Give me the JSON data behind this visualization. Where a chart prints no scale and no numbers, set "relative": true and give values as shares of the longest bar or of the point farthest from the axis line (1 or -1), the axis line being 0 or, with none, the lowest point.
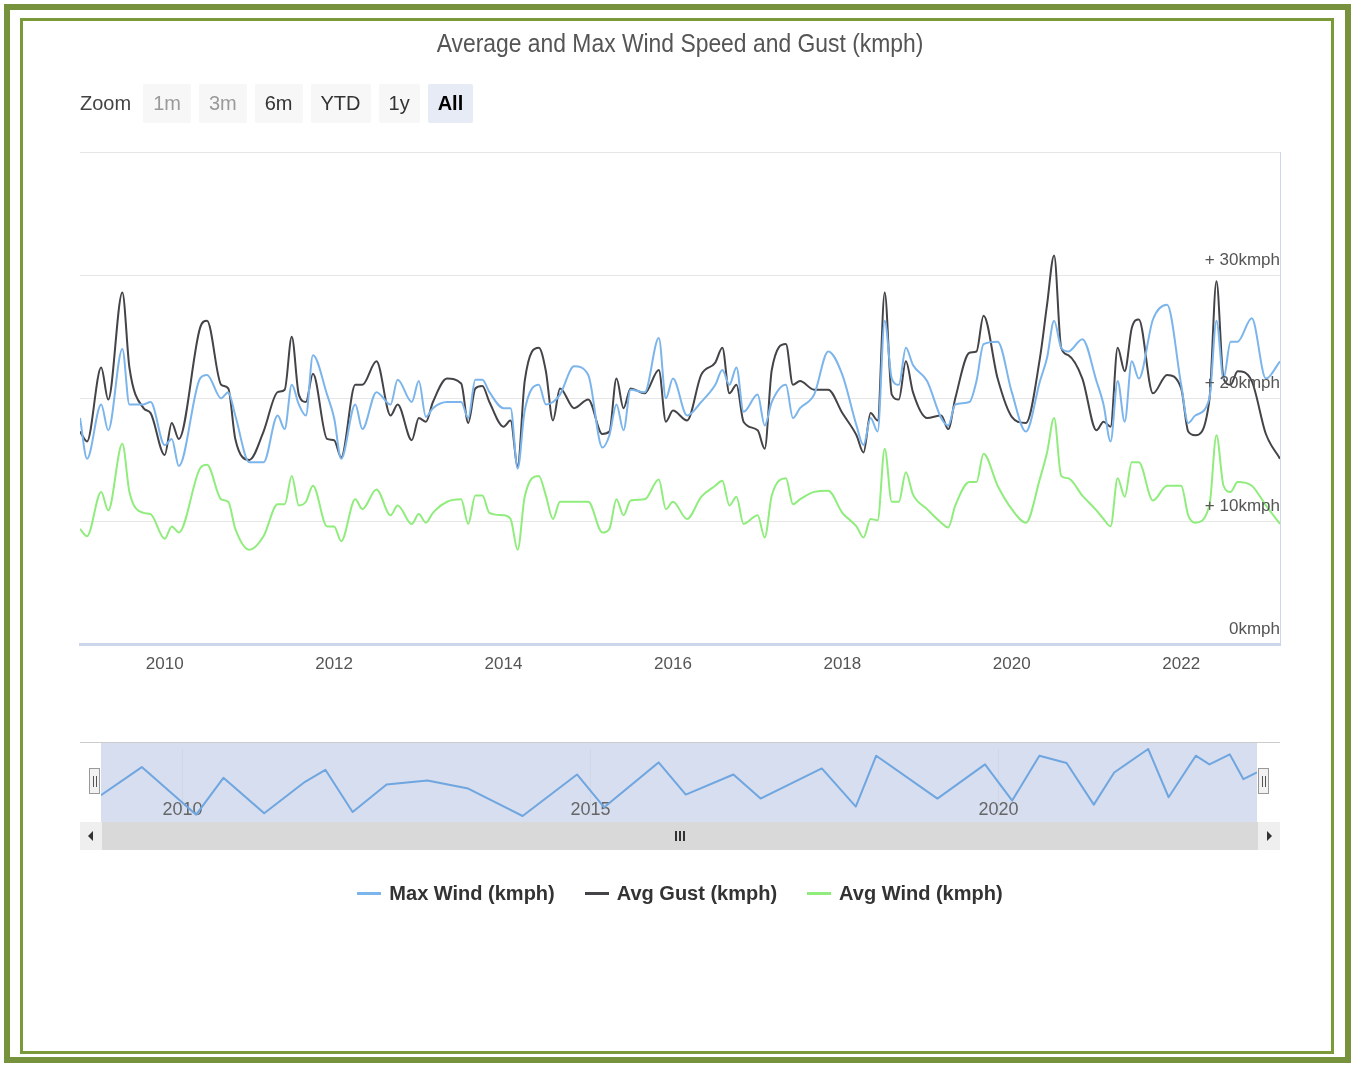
{
  "chart_data": [
    {
      "type": "line",
      "title": "Average and Max Wind Speed and Gust (kmph)",
      "annotations": [
        "Zoom",
        "1m",
        "3m",
        "6m",
        "YTD",
        "1y",
        "All"
      ],
      "x": [
        "2009-01",
        "2009-02",
        "2009-04",
        "2009-05",
        "2009-07",
        "2009-08",
        "2009-10",
        "2009-11",
        "2010-01",
        "2010-02",
        "2010-03",
        "2010-06",
        "2010-07",
        "2010-09",
        "2010-10",
        "2010-11",
        "2011-01",
        "2011-03",
        "2011-05",
        "2011-06",
        "2011-07",
        "2011-08",
        "2011-09",
        "2011-10",
        "2011-12",
        "2012-01",
        "2012-02",
        "2012-04",
        "2012-05",
        "2012-07",
        "2012-09",
        "2012-10",
        "2012-12",
        "2013-01",
        "2013-02",
        "2013-03",
        "2013-05",
        "2013-07",
        "2013-08",
        "2013-09",
        "2013-10",
        "2013-11",
        "2014-01",
        "2014-02",
        "2014-03",
        "2014-04",
        "2014-06",
        "2014-07",
        "2014-08",
        "2014-09",
        "2014-11",
        "2015-01",
        "2015-03",
        "2015-04",
        "2015-05",
        "2015-06",
        "2015-07",
        "2015-09",
        "2015-11",
        "2015-12",
        "2016-01",
        "2016-03",
        "2016-05",
        "2016-07",
        "2016-08",
        "2016-09",
        "2016-10",
        "2016-11",
        "2017-01",
        "2017-02",
        "2017-03",
        "2017-05",
        "2017-06",
        "2017-07",
        "2017-09",
        "2017-11",
        "2018-01",
        "2018-03",
        "2018-04",
        "2018-05",
        "2018-06",
        "2018-07",
        "2018-08",
        "2018-09",
        "2018-10",
        "2018-11",
        "2019-01",
        "2019-03",
        "2019-04",
        "2019-05",
        "2019-07",
        "2019-08",
        "2019-09",
        "2019-11",
        "2020-01",
        "2020-03",
        "2020-05",
        "2020-06",
        "2020-07",
        "2020-08",
        "2020-09",
        "2020-11",
        "2021-01",
        "2021-02",
        "2021-03",
        "2021-04",
        "2021-05",
        "2021-06",
        "2021-07",
        "2021-09",
        "2021-11",
        "2022-01",
        "2022-02",
        "2022-03",
        "2022-05",
        "2022-06",
        "2022-07",
        "2022-08",
        "2022-09",
        "2022-11",
        "2023-01",
        "2023-03"
      ],
      "xlim": [
        "2009-01",
        "2023-03"
      ],
      "xticks": [
        "2010",
        "2012",
        "2014",
        "2016",
        "2018",
        "2020",
        "2022"
      ],
      "ylim": [
        0,
        40
      ],
      "yticks": [
        {
          "value": 0,
          "label": "0kmph"
        },
        {
          "value": 10,
          "label": "+ 10kmph"
        },
        {
          "value": 20,
          "label": "+ 20kmph"
        },
        {
          "value": 30,
          "label": "+ 30kmph"
        },
        {
          "value": 40,
          "label": null
        }
      ],
      "grid": "y",
      "legend": "bottom",
      "marker": "none",
      "series": [
        {
          "name": "Max Wind (kmph)",
          "color": "#7cb5ec",
          "values": [
            18.4,
            15.1,
            19.5,
            17.4,
            24.0,
            19.5,
            19.5,
            19.7,
            16.2,
            16.7,
            14.5,
            21.6,
            21.9,
            20.0,
            20.5,
            18.6,
            14.8,
            14.8,
            18.6,
            17.5,
            21.1,
            19.5,
            18.6,
            23.5,
            20.3,
            18.4,
            15.1,
            19.5,
            17.5,
            20.5,
            19.5,
            21.5,
            19.7,
            21.4,
            18.5,
            19.2,
            19.7,
            19.7,
            18.4,
            21.5,
            21.5,
            20.5,
            19.2,
            19.2,
            14.3,
            19.0,
            21.1,
            19.5,
            19.7,
            20.3,
            22.6,
            21.9,
            16.0,
            17.0,
            19.5,
            17.4,
            20.7,
            20.5,
            24.9,
            20.0,
            21.6,
            18.6,
            19.7,
            21.1,
            22.3,
            21.1,
            22.5,
            18.9,
            20.3,
            17.8,
            19.7,
            21.1,
            18.4,
            19.2,
            20.3,
            23.8,
            21.9,
            17.8,
            16.2,
            18.4,
            17.3,
            26.3,
            21.6,
            21.1,
            24.1,
            22.7,
            21.4,
            18.4,
            17.8,
            19.5,
            19.7,
            21.4,
            24.4,
            24.6,
            20.5,
            17.3,
            21.4,
            23.3,
            26.3,
            24.1,
            23.8,
            24.8,
            21.4,
            19.5,
            16.5,
            21.4,
            18.1,
            23.0,
            21.6,
            26.4,
            27.6,
            21.1,
            18.0,
            18.6,
            20.0,
            26.3,
            21.6,
            24.6,
            24.6,
            26.5,
            21.6,
            23.0
          ]
        },
        {
          "name": "Avg Gust (kmph)",
          "color": "#434348",
          "values": [
            17.3,
            16.5,
            22.5,
            19.9,
            28.6,
            22.5,
            19.2,
            18.8,
            15.4,
            18.0,
            16.7,
            25.7,
            26.3,
            21.1,
            20.8,
            16.7,
            15.0,
            17.3,
            20.5,
            20.7,
            25.0,
            20.3,
            19.7,
            22.0,
            16.7,
            16.6,
            15.2,
            21.1,
            21.1,
            23.0,
            18.6,
            19.5,
            16.6,
            18.4,
            18.1,
            19.7,
            21.6,
            21.2,
            18.0,
            20.8,
            21.0,
            19.7,
            17.7,
            18.2,
            14.5,
            21.4,
            24.1,
            22.2,
            18.2,
            20.8,
            19.2,
            19.9,
            17.1,
            17.3,
            21.6,
            19.2,
            20.8,
            20.4,
            22.3,
            18.1,
            19.0,
            18.2,
            21.9,
            22.9,
            24.1,
            20.4,
            21.1,
            18.1,
            17.4,
            15.9,
            22.3,
            24.4,
            21.1,
            21.4,
            20.7,
            20.7,
            18.8,
            17.0,
            15.6,
            18.8,
            18.2,
            28.6,
            20.3,
            19.9,
            23.0,
            20.5,
            18.4,
            18.6,
            17.5,
            20.0,
            23.7,
            23.8,
            26.7,
            21.6,
            18.5,
            18.0,
            23.3,
            27.6,
            31.6,
            24.1,
            23.5,
            21.6,
            17.4,
            18.1,
            17.7,
            24.1,
            22.2,
            25.7,
            26.4,
            20.4,
            21.9,
            20.8,
            17.3,
            17.0,
            19.9,
            29.5,
            21.6,
            21.1,
            22.2,
            21.4,
            17.1,
            15.1
          ]
        },
        {
          "name": "Avg Wind (kmph)",
          "color": "#90ed7d",
          "values": [
            9.4,
            8.8,
            12.4,
            10.9,
            16.3,
            12.4,
            10.7,
            10.6,
            8.6,
            9.6,
            9.1,
            14.3,
            14.6,
            11.8,
            11.6,
            9.4,
            7.7,
            8.8,
            11.4,
            11.4,
            13.7,
            11.3,
            11.6,
            12.9,
            9.6,
            9.6,
            8.4,
            11.8,
            11.0,
            12.6,
            10.5,
            11.3,
            9.8,
            10.6,
            9.9,
            10.7,
            11.6,
            11.8,
            9.8,
            12.1,
            12.1,
            10.7,
            10.5,
            10.2,
            7.7,
            12.0,
            13.7,
            12.1,
            10.2,
            11.6,
            11.6,
            11.6,
            9.1,
            9.4,
            11.8,
            10.5,
            11.7,
            11.8,
            13.4,
            11.0,
            11.6,
            10.2,
            12.0,
            12.9,
            13.3,
            11.3,
            12.0,
            9.8,
            10.5,
            8.7,
            12.1,
            13.5,
            11.4,
            11.8,
            12.4,
            12.5,
            10.7,
            9.6,
            8.7,
            10.2,
            10.1,
            15.9,
            11.6,
            11.6,
            14.0,
            12.2,
            11.0,
            9.9,
            9.5,
            11.3,
            13.2,
            13.2,
            15.5,
            12.9,
            11.0,
            9.9,
            13.5,
            15.6,
            18.4,
            13.7,
            13.5,
            12.1,
            10.9,
            10.2,
            9.6,
            13.5,
            12.0,
            14.8,
            14.8,
            11.7,
            12.9,
            12.9,
            10.5,
            9.9,
            11.3,
            17.0,
            12.9,
            12.4,
            13.2,
            12.9,
            11.3,
            9.8
          ]
        }
      ]
    },
    {
      "type": "line",
      "relative": true,
      "x": [
        "2009-01",
        "2009-07",
        "2010-03",
        "2010-07",
        "2011-01",
        "2011-07",
        "2011-10",
        "2012-02",
        "2012-07",
        "2013-01",
        "2013-07",
        "2014-03",
        "2014-11",
        "2015-03",
        "2015-11",
        "2016-03",
        "2016-10",
        "2017-02",
        "2017-11",
        "2018-04",
        "2018-07",
        "2019-04",
        "2019-11",
        "2020-03",
        "2020-07",
        "2020-11",
        "2021-03",
        "2021-06",
        "2021-11",
        "2022-02",
        "2022-06",
        "2022-08",
        "2022-11",
        "2023-01",
        "2023-03"
      ],
      "xlim": [
        "2009-01",
        "2023-03"
      ],
      "xticks": [
        "2010",
        "2015",
        "2020"
      ],
      "tick_labels": "x",
      "grid": "x",
      "marker": "none",
      "bands": [
        {
          "axis": "x",
          "from": "2009-01",
          "to": "2023-03",
          "color": "#ccd6eb"
        }
      ],
      "series": [
        {
          "color": "#6fa6e0",
          "values": [
            0.31,
            0.73,
            0.02,
            0.57,
            0.04,
            0.51,
            0.69,
            0.06,
            0.47,
            0.53,
            0.41,
            0,
            0.62,
            0.13,
            0.8,
            0.32,
            0.62,
            0.26,
            0.71,
            0.14,
            0.9,
            0.26,
            0.77,
            0.23,
            0.9,
            0.79,
            0.17,
            0.65,
            1,
            0.28,
            0.9,
            0.77,
            0.92,
            0.55,
            0.65
          ]
        }
      ]
    }
  ]
}
